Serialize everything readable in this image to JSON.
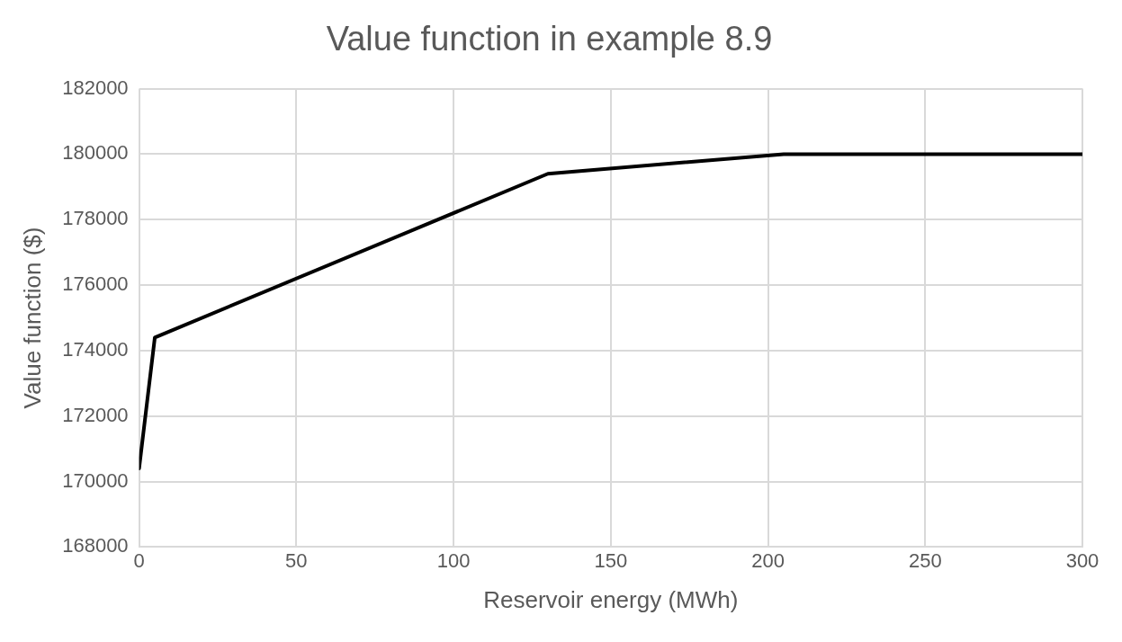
{
  "chart_data": {
    "type": "line",
    "title": "Value function in example 8.9",
    "xlabel": "Reservoir energy (MWh)",
    "ylabel": "Value function ($)",
    "x": [
      0,
      5,
      130,
      205,
      300
    ],
    "series": [
      {
        "color": "#000000",
        "values": [
          170400,
          174400,
          179400,
          180000,
          180000
        ]
      }
    ],
    "xlim": [
      0,
      300
    ],
    "xticks": [
      0,
      50,
      100,
      150,
      200,
      250,
      300
    ],
    "ylim": [
      168000,
      182000
    ],
    "yticks": [
      168000,
      170000,
      172000,
      174000,
      176000,
      178000,
      180000,
      182000
    ],
    "grid": true,
    "legend": false,
    "marker": "none",
    "line_style": "solid"
  }
}
